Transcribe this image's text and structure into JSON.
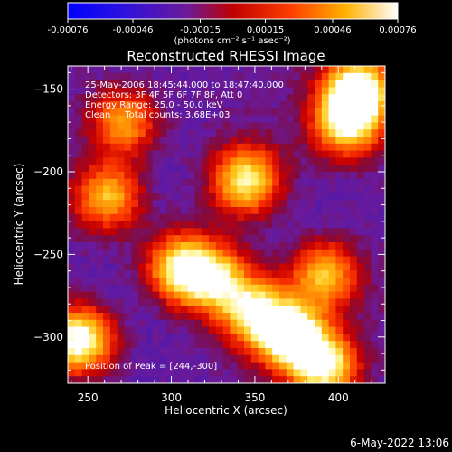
{
  "colorbar": {
    "ticks": [
      "-0.00076",
      "-0.00046",
      "-0.00015",
      "0.00015",
      "0.00046",
      "0.00076"
    ],
    "tick_values": [
      -0.00076,
      -0.00046,
      -0.00015,
      0.00015,
      0.00046,
      0.00076
    ],
    "range": [
      -0.00076,
      0.00076
    ],
    "unit_label": "(photons cm⁻² s⁻¹ asec⁻²)"
  },
  "chart_data": {
    "type": "heatmap",
    "title": "Reconstructed RHESSI Image",
    "xlabel": "Heliocentric X (arcsec)",
    "ylabel": "Heliocentric Y (arcsec)",
    "xlim": [
      238,
      428
    ],
    "ylim": [
      -328,
      -136
    ],
    "xticks": [
      250,
      300,
      350,
      400
    ],
    "yticks": [
      -150,
      -200,
      -250,
      -300
    ],
    "xtick_labels": [
      "250",
      "300",
      "350",
      "400"
    ],
    "ytick_labels": [
      "−150",
      "−200",
      "−250",
      "−300"
    ],
    "colorscale": "rainbow-like: blue → purple → red → orange → yellow → white",
    "annotations": [
      "25-May-2006 18:45:44.000 to 18:47:40.000",
      "Detectors: 3F 4F 5F 6F 7F 8F, Att 0",
      "Energy Range: 25.0 - 50.0 keV",
      "Clean     Total counts: 3.68E+03",
      "Position of Peak = [244,-300]"
    ],
    "peak": [
      244,
      -300
    ],
    "bright_sources": [
      {
        "x": 245,
        "y": -302,
        "level": 0.75
      },
      {
        "x": 412,
        "y": -150,
        "level": 0.7
      },
      {
        "x": 405,
        "y": -170,
        "level": 0.6
      },
      {
        "x": 372,
        "y": -300,
        "level": 0.75
      },
      {
        "x": 350,
        "y": -285,
        "level": 0.6
      },
      {
        "x": 392,
        "y": -318,
        "level": 0.65
      },
      {
        "x": 345,
        "y": -205,
        "level": 0.6
      },
      {
        "x": 305,
        "y": -258,
        "level": 0.6
      },
      {
        "x": 325,
        "y": -265,
        "level": 0.55
      },
      {
        "x": 262,
        "y": -215,
        "level": 0.5
      },
      {
        "x": 392,
        "y": -262,
        "level": 0.5
      },
      {
        "x": 272,
        "y": -170,
        "level": 0.45
      }
    ]
  },
  "timestamp": "6-May-2022 13:06"
}
